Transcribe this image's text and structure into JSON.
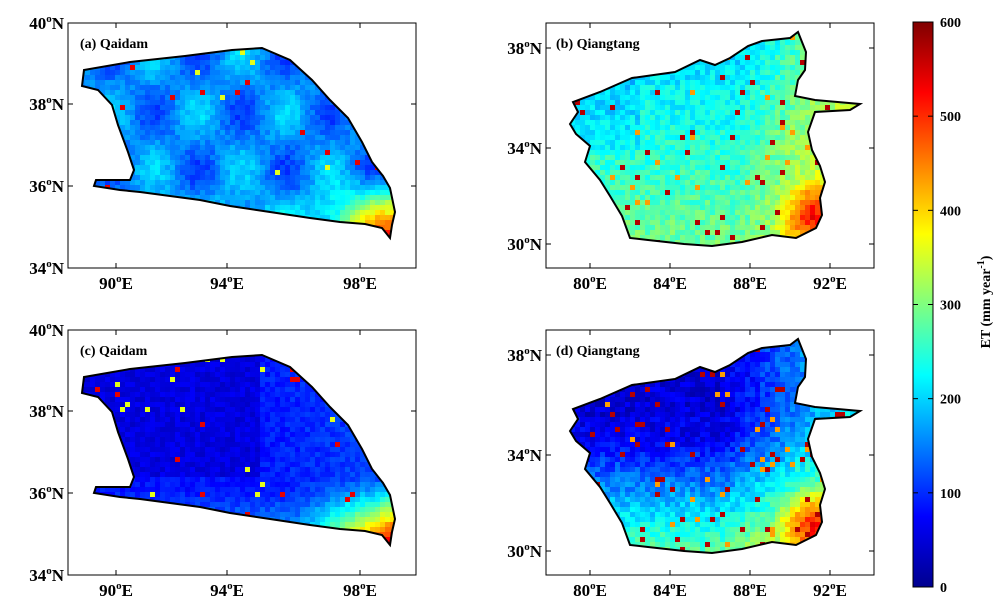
{
  "figure": {
    "colormap": "jet",
    "colorbar": {
      "label_prefix": "ET (mm year",
      "label_exponent": "-1",
      "label_suffix": ")",
      "ticks": [
        "0",
        "100",
        "200",
        "300",
        "400",
        "500",
        "600"
      ],
      "range": [
        0,
        600
      ]
    },
    "panels": [
      {
        "id": "a",
        "title": "(a) Qaidam",
        "region": "Qaidam",
        "lat_ticks": [
          "40",
          "38",
          "36",
          "34"
        ],
        "lon_ticks": [
          "90",
          "94",
          "98"
        ],
        "base_et": "moderate"
      },
      {
        "id": "b",
        "title": "(b) Qiangtang",
        "region": "Qiangtang",
        "lat_ticks": [
          "38",
          "34",
          "30"
        ],
        "lon_ticks": [
          "80",
          "84",
          "88",
          "92"
        ],
        "base_et": "moderate"
      },
      {
        "id": "c",
        "title": "(c) Qaidam",
        "region": "Qaidam",
        "lat_ticks": [
          "40",
          "38",
          "36",
          "34"
        ],
        "lon_ticks": [
          "90",
          "94",
          "98"
        ],
        "base_et": "low"
      },
      {
        "id": "d",
        "title": "(d) Qiangtang",
        "region": "Qiangtang",
        "lat_ticks": [
          "38",
          "34",
          "30"
        ],
        "lon_ticks": [
          "80",
          "84",
          "88",
          "92"
        ],
        "base_et": "low"
      }
    ]
  }
}
